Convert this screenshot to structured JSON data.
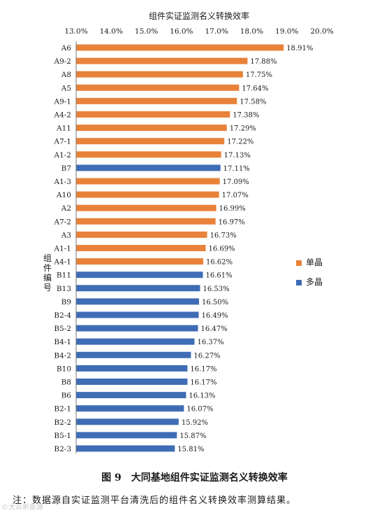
{
  "chart_data": {
    "type": "bar",
    "orientation": "horizontal",
    "title": "组件实证监测名义转换效率",
    "ylabel": "组件编号",
    "xlim": [
      13.0,
      20.0
    ],
    "xticks": [
      "13.0%",
      "14.0%",
      "15.0%",
      "16.0%",
      "17.0%",
      "18.0%",
      "19.0%",
      "20.0%"
    ],
    "series": [
      {
        "name": "单晶",
        "color": "#E8823A"
      },
      {
        "name": "多晶",
        "color": "#3F6DB5"
      }
    ],
    "bars": [
      {
        "label": "A6",
        "value": 18.91,
        "text": "18.91%",
        "series": 0
      },
      {
        "label": "A9-2",
        "value": 17.88,
        "text": "17.88%",
        "series": 0
      },
      {
        "label": "A8",
        "value": 17.75,
        "text": "17.75%",
        "series": 0
      },
      {
        "label": "A5",
        "value": 17.64,
        "text": "17.64%",
        "series": 0
      },
      {
        "label": "A9-1",
        "value": 17.58,
        "text": "17.58%",
        "series": 0
      },
      {
        "label": "A4-2",
        "value": 17.38,
        "text": "17.38%",
        "series": 0
      },
      {
        "label": "A11",
        "value": 17.29,
        "text": "17.29%",
        "series": 0
      },
      {
        "label": "A7-1",
        "value": 17.22,
        "text": "17.22%",
        "series": 0
      },
      {
        "label": "A1-2",
        "value": 17.13,
        "text": "17.13%",
        "series": 0
      },
      {
        "label": "B7",
        "value": 17.11,
        "text": "17.11%",
        "series": 1
      },
      {
        "label": "A1-3",
        "value": 17.09,
        "text": "17.09%",
        "series": 0
      },
      {
        "label": "A10",
        "value": 17.07,
        "text": "17.07%",
        "series": 0
      },
      {
        "label": "A2",
        "value": 16.99,
        "text": "16.99%",
        "series": 0
      },
      {
        "label": "A7-2",
        "value": 16.97,
        "text": "16.97%",
        "series": 0
      },
      {
        "label": "A3",
        "value": 16.73,
        "text": "16.73%",
        "series": 0
      },
      {
        "label": "A1-1",
        "value": 16.69,
        "text": "16.69%",
        "series": 0
      },
      {
        "label": "A4-1",
        "value": 16.62,
        "text": "16.62%",
        "series": 0
      },
      {
        "label": "B11",
        "value": 16.61,
        "text": "16.61%",
        "series": 1
      },
      {
        "label": "B13",
        "value": 16.53,
        "text": "16.53%",
        "series": 1
      },
      {
        "label": "B9",
        "value": 16.5,
        "text": "16.50%",
        "series": 1
      },
      {
        "label": "B2-4",
        "value": 16.49,
        "text": "16.49%",
        "series": 1
      },
      {
        "label": "B5-2",
        "value": 16.47,
        "text": "16.47%",
        "series": 1
      },
      {
        "label": "B4-1",
        "value": 16.37,
        "text": "16.37%",
        "series": 1
      },
      {
        "label": "B4-2",
        "value": 16.27,
        "text": "16.27%",
        "series": 1
      },
      {
        "label": "B10",
        "value": 16.17,
        "text": "16.17%",
        "series": 1
      },
      {
        "label": "B8",
        "value": 16.17,
        "text": "16.17%",
        "series": 1
      },
      {
        "label": "B6",
        "value": 16.13,
        "text": "16.13%",
        "series": 1
      },
      {
        "label": "B2-1",
        "value": 16.07,
        "text": "16.07%",
        "series": 1
      },
      {
        "label": "B2-2",
        "value": 15.92,
        "text": "15.92%",
        "series": 1
      },
      {
        "label": "B5-1",
        "value": 15.87,
        "text": "15.87%",
        "series": 1
      },
      {
        "label": "B2-3",
        "value": 15.81,
        "text": "15.81%",
        "series": 1
      }
    ],
    "legend_position": "right",
    "grid": false
  },
  "caption": "图 9　大同基地组件实证监测名义转换效率",
  "note": "注：数据源自实证监测平台清洗后的组件名义转换效率测算结果。",
  "watermark": "©大众新能源"
}
